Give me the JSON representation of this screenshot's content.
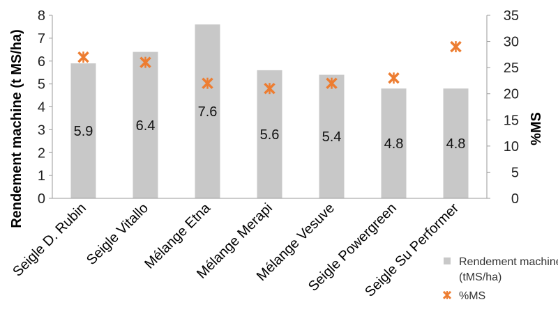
{
  "chart_data": {
    "type": "bar",
    "categories": [
      "Seigle D. Rubin",
      "Seigle Vitallo",
      "Mélange Etna",
      "Mélange Merapi",
      "Mélange Vesuve",
      "Seigle Powergreen",
      "Seigle Su Performer"
    ],
    "series": [
      {
        "name": "Rendement machine (tMS/ha)",
        "type": "bar",
        "axis": "left",
        "color": "#c8c8c8",
        "values": [
          5.9,
          6.4,
          7.6,
          5.6,
          5.4,
          4.8,
          4.8
        ],
        "data_labels": [
          "5.9",
          "6.4",
          "7.6",
          "5.6",
          "5.4",
          "4.8",
          "4.8"
        ]
      },
      {
        "name": "%MS",
        "type": "scatter",
        "axis": "right",
        "marker": "x",
        "color": "#ed7d31",
        "values": [
          27,
          26,
          22,
          21,
          22,
          23,
          29
        ]
      }
    ],
    "ylabel": "Rendement machine (t MS/ha)",
    "y2label": "%MS",
    "ylim": [
      0,
      8
    ],
    "y2lim": [
      0,
      35
    ],
    "yticks": [
      "0",
      "1",
      "2",
      "3",
      "4",
      "5",
      "6",
      "7",
      "8"
    ],
    "y2ticks": [
      "0",
      "5",
      "10",
      "15",
      "20",
      "25",
      "30",
      "35"
    ],
    "grid": false,
    "legend": {
      "position": "bottom-right",
      "entries": [
        "Rendement machine",
        "(tMS/ha)",
        "%MS"
      ]
    }
  }
}
